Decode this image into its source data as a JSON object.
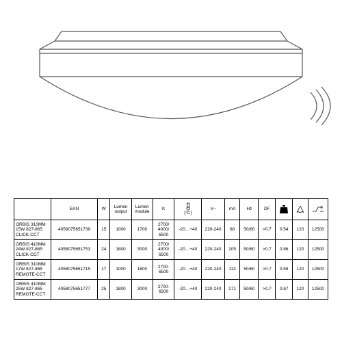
{
  "diagram": {
    "stroke": "#555",
    "stroke_width": 1.2,
    "background": "#ffffff"
  },
  "table": {
    "headers": {
      "ean": "EAN",
      "w": "W",
      "lumen_output": "Lumen output",
      "lumen_module": "Lumen module",
      "k": "K",
      "temp_unit": "[°C]",
      "v": "V~",
      "ma": "mA",
      "hz": "Hz",
      "df": "DF"
    },
    "rows": [
      {
        "name": "ORBIS 310MM 15W 827-865 CLICK-CCT",
        "ean": "4058075651739",
        "w": "15",
        "lumo": "1000",
        "lumm": "1700",
        "k": "2700/ 4000/ 6500",
        "temp": "-20…+40",
        "v": "220-240",
        "ma": "68",
        "hz": "50/60",
        "df": ">0.7",
        "i1": "0.54",
        "i2": "120",
        "i3": "12500"
      },
      {
        "name": "ORBIS 410MM 24W 827-865 CLICK-CCT",
        "ean": "4058075651753",
        "w": "24",
        "lumo": "1800",
        "lumm": "3000",
        "k": "2700/ 4000/ 6500",
        "temp": "-20…+40",
        "v": "220-240",
        "ma": "105",
        "hz": "50/60",
        "df": ">0.7",
        "i1": "0.86",
        "i2": "120",
        "i3": "12500"
      },
      {
        "name": "ORBIS 310MM 17W 827-865 REMOTE-CCT",
        "ean": "4058075651715",
        "w": "17",
        "lumo": "1000",
        "lumm": "1800",
        "k": "2700- 6500",
        "temp": "-20…+40",
        "v": "220-240",
        "ma": "113",
        "hz": "50/60",
        "df": ">0.7",
        "i1": "0.55",
        "i2": "120",
        "i3": "12500"
      },
      {
        "name": "ORBIS 410MM 25W 827-865 REMOTE-CCT",
        "ean": "4058075651777",
        "w": "25",
        "lumo": "1800",
        "lumm": "3000",
        "k": "2700- 6500",
        "temp": "-20…+40",
        "v": "220-240",
        "ma": "171",
        "hz": "50/60",
        "df": ">0.7",
        "i1": "0.87",
        "i2": "120",
        "i3": "12500"
      }
    ]
  }
}
